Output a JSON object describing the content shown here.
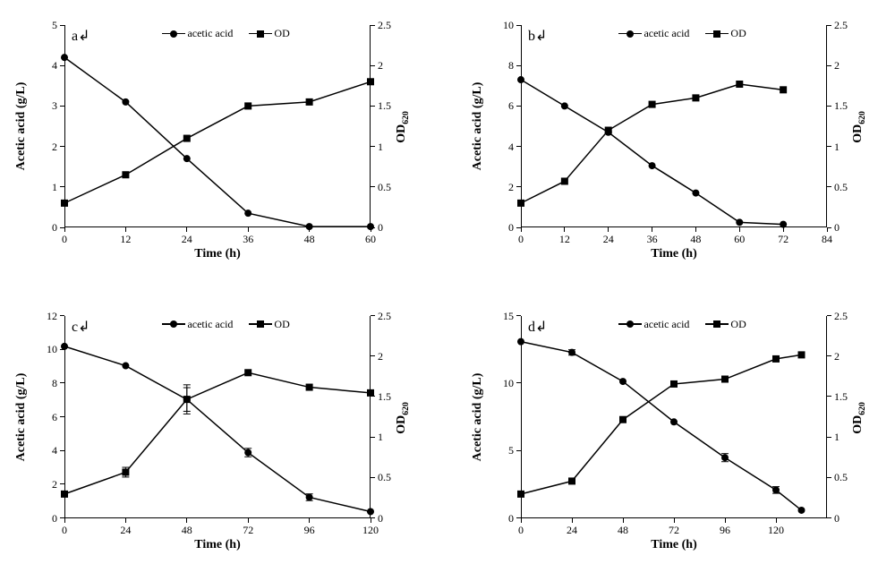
{
  "figure": {
    "background_color": "#ffffff",
    "line_color": "#000000",
    "marker_color": "#000000",
    "font_family": "Times New Roman",
    "panels": [
      {
        "id": "a",
        "letter": "a",
        "x_label": "Time (h)",
        "y1_label": "Acetic acid (g/L)",
        "y2_label": "OD",
        "y2_sub": "620",
        "x_ticks": [
          0,
          12,
          24,
          36,
          48,
          60
        ],
        "x_lim": [
          0,
          60
        ],
        "y1_ticks": [
          0,
          1,
          2,
          3,
          4,
          5
        ],
        "y1_lim": [
          0,
          5
        ],
        "y2_ticks": [
          0,
          0.5,
          1,
          1.5,
          2,
          2.5
        ],
        "y2_lim": [
          0,
          2.5
        ],
        "legend": [
          {
            "label": "acetic acid",
            "marker": "circle"
          },
          {
            "label": "OD",
            "marker": "square"
          }
        ],
        "series": [
          {
            "name": "acetic",
            "axis": "y1",
            "marker": "circle",
            "x": [
              0,
              12,
              24,
              36,
              48,
              60
            ],
            "y": [
              4.2,
              3.1,
              1.7,
              0.35,
              0.02,
              0.02
            ]
          },
          {
            "name": "od",
            "axis": "y2",
            "marker": "square",
            "x": [
              0,
              12,
              24,
              36,
              48,
              60
            ],
            "y": [
              0.3,
              0.65,
              1.1,
              1.5,
              1.55,
              1.8
            ]
          }
        ]
      },
      {
        "id": "b",
        "letter": "b",
        "x_label": "Time (h)",
        "y1_label": "Acetic acid (g/L)",
        "y2_label": "OD",
        "y2_sub": "620",
        "x_ticks": [
          0,
          12,
          24,
          36,
          48,
          60,
          72,
          84
        ],
        "x_lim": [
          0,
          84
        ],
        "y1_ticks": [
          0,
          2,
          4,
          6,
          8,
          10
        ],
        "y1_lim": [
          0,
          10
        ],
        "y2_ticks": [
          0,
          0.5,
          1,
          1.5,
          2,
          2.5
        ],
        "y2_lim": [
          0,
          2.5
        ],
        "legend": [
          {
            "label": "acetic acid",
            "marker": "circle"
          },
          {
            "label": "OD",
            "marker": "square"
          }
        ],
        "series": [
          {
            "name": "acetic",
            "axis": "y1",
            "marker": "circle",
            "x": [
              0,
              12,
              24,
              36,
              48,
              60,
              72
            ],
            "y": [
              7.3,
              6.0,
              4.7,
              3.05,
              1.7,
              0.25,
              0.15
            ]
          },
          {
            "name": "od",
            "axis": "y2",
            "marker": "square",
            "x": [
              0,
              12,
              24,
              36,
              48,
              60,
              72
            ],
            "y": [
              0.3,
              0.57,
              1.2,
              1.52,
              1.6,
              1.77,
              1.7
            ]
          }
        ]
      },
      {
        "id": "c",
        "letter": "c",
        "x_label": "Time (h)",
        "y1_label": "Acetic acid (g/L)",
        "y2_label": "OD",
        "y2_sub": "620",
        "x_ticks": [
          0,
          24,
          48,
          72,
          96,
          120
        ],
        "x_lim": [
          0,
          120
        ],
        "y1_ticks": [
          0,
          2,
          4,
          6,
          8,
          10,
          12
        ],
        "y1_lim": [
          0,
          12
        ],
        "y2_ticks": [
          0,
          0.5,
          1,
          1.5,
          2,
          2.5
        ],
        "y2_lim": [
          0,
          2.5
        ],
        "legend": [
          {
            "label": "acetic acid",
            "marker": "circle"
          },
          {
            "label": "OD",
            "marker": "square"
          }
        ],
        "series": [
          {
            "name": "acetic",
            "axis": "y1",
            "marker": "circle",
            "x": [
              0,
              24,
              48,
              72,
              96,
              120
            ],
            "y": [
              10.2,
              9.05,
              7.05,
              3.9,
              1.25,
              0.4
            ],
            "err": [
              0,
              0,
              0.7,
              0.25,
              0.2,
              0
            ]
          },
          {
            "name": "od",
            "axis": "y2",
            "marker": "square",
            "x": [
              0,
              24,
              48,
              72,
              96,
              120
            ],
            "y": [
              0.3,
              0.57,
              1.47,
              1.8,
              1.62,
              1.55
            ],
            "err": [
              0,
              0.06,
              0.18,
              0,
              0,
              0
            ]
          }
        ]
      },
      {
        "id": "d",
        "letter": "d",
        "x_label": "Time (h)",
        "y1_label": "Acetic acid (g/L)",
        "y2_label": "OD",
        "y2_sub": "620",
        "x_ticks": [
          0,
          24,
          48,
          72,
          96,
          120
        ],
        "x_lim": [
          0,
          144
        ],
        "y1_ticks": [
          0,
          5,
          10,
          15
        ],
        "y1_lim": [
          0,
          15
        ],
        "y2_ticks": [
          0,
          0.5,
          1,
          1.5,
          2,
          2.5
        ],
        "y2_lim": [
          0,
          2.5
        ],
        "legend": [
          {
            "label": "acetic acid",
            "marker": "circle"
          },
          {
            "label": "OD",
            "marker": "square"
          }
        ],
        "series": [
          {
            "name": "acetic",
            "axis": "y1",
            "marker": "circle",
            "x": [
              0,
              24,
              48,
              72,
              96,
              120,
              132
            ],
            "y": [
              13.1,
              12.3,
              10.15,
              7.15,
              4.5,
              2.1,
              0.6
            ],
            "err": [
              0,
              0.2,
              0,
              0,
              0.3,
              0.25,
              0
            ]
          },
          {
            "name": "od",
            "axis": "y2",
            "marker": "square",
            "x": [
              0,
              24,
              48,
              72,
              96,
              120,
              132
            ],
            "y": [
              0.3,
              0.46,
              1.22,
              1.66,
              1.72,
              1.97,
              2.02
            ]
          }
        ]
      }
    ]
  }
}
